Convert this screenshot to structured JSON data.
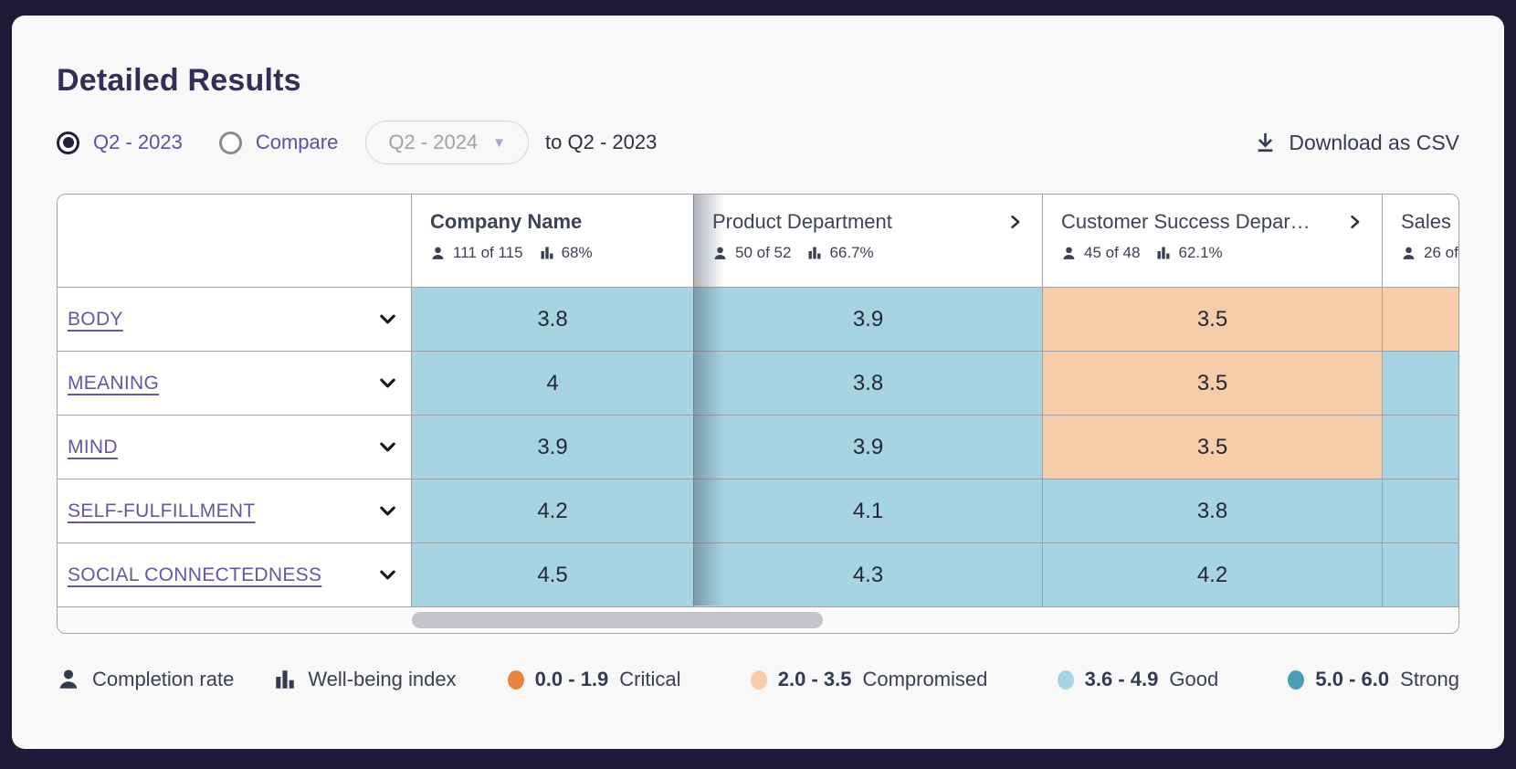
{
  "page": {
    "title": "Detailed Results"
  },
  "controls": {
    "radio_current": {
      "label": "Q2 - 2023",
      "selected": true
    },
    "radio_compare": {
      "label": "Compare",
      "selected": false
    },
    "compare_select": {
      "value": "Q2 - 2024"
    },
    "compare_to_text": "to Q2 - 2023",
    "download_label": "Download as CSV"
  },
  "table": {
    "columns": [
      {
        "name": "Company Name",
        "bold": true,
        "expandable": false,
        "completion": "111 of 115",
        "index": "68%"
      },
      {
        "name": "Product Department",
        "bold": false,
        "expandable": true,
        "completion": "50 of 52",
        "index": "66.7%"
      },
      {
        "name": "Customer Success Depar…",
        "bold": false,
        "expandable": true,
        "completion": "45 of 48",
        "index": "62.1%"
      },
      {
        "name": "Sales",
        "bold": false,
        "expandable": false,
        "completion": "26 of",
        "index": ""
      }
    ],
    "rows": [
      {
        "label": "BODY",
        "cells": [
          {
            "value": "3.8",
            "band": "good"
          },
          {
            "value": "3.9",
            "band": "good"
          },
          {
            "value": "3.5",
            "band": "compromised"
          },
          {
            "value": "",
            "band": "compromised"
          }
        ]
      },
      {
        "label": "MEANING",
        "cells": [
          {
            "value": "4",
            "band": "good"
          },
          {
            "value": "3.8",
            "band": "good"
          },
          {
            "value": "3.5",
            "band": "compromised"
          },
          {
            "value": "",
            "band": "good"
          }
        ]
      },
      {
        "label": "MIND",
        "cells": [
          {
            "value": "3.9",
            "band": "good"
          },
          {
            "value": "3.9",
            "band": "good"
          },
          {
            "value": "3.5",
            "band": "compromised"
          },
          {
            "value": "",
            "band": "good"
          }
        ]
      },
      {
        "label": "SELF-FULFILLMENT",
        "cells": [
          {
            "value": "4.2",
            "band": "good"
          },
          {
            "value": "4.1",
            "band": "good"
          },
          {
            "value": "3.8",
            "band": "good"
          },
          {
            "value": "",
            "band": "good"
          }
        ]
      },
      {
        "label": "SOCIAL CONNECTEDNESS",
        "cells": [
          {
            "value": "4.5",
            "band": "good"
          },
          {
            "value": "4.3",
            "band": "good"
          },
          {
            "value": "4.2",
            "band": "good"
          },
          {
            "value": "",
            "band": "good"
          }
        ]
      }
    ]
  },
  "legend": {
    "completion_label": "Completion rate",
    "index_label": "Well-being index",
    "bands": [
      {
        "range": "0.0 - 1.9",
        "label": "Critical",
        "band": "critical"
      },
      {
        "range": "2.0 - 3.5",
        "label": "Compromised",
        "band": "compromised"
      },
      {
        "range": "3.6 - 4.9",
        "label": "Good",
        "band": "good"
      },
      {
        "range": "5.0 - 6.0",
        "label": "Strong",
        "band": "strong"
      }
    ]
  },
  "colors": {
    "page_background": "#1e1936",
    "card_background": "#f8f8f9",
    "accent_purple": "#5d529c",
    "bands": {
      "critical": "#e98540",
      "compromised": "#f7cda9",
      "good": "#a7d4e2",
      "strong": "#4b9cb7"
    }
  }
}
